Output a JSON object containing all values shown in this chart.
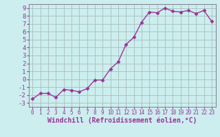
{
  "x": [
    0,
    1,
    2,
    3,
    4,
    5,
    6,
    7,
    8,
    9,
    10,
    11,
    12,
    13,
    14,
    15,
    16,
    17,
    18,
    19,
    20,
    21,
    22,
    23
  ],
  "y": [
    -2.5,
    -1.8,
    -1.8,
    -2.3,
    -1.3,
    -1.4,
    -1.6,
    -1.2,
    -0.1,
    -0.1,
    1.3,
    2.2,
    4.4,
    5.3,
    7.2,
    8.5,
    8.4,
    9.0,
    8.6,
    8.5,
    8.7,
    8.3,
    8.7,
    7.3
  ],
  "line_color": "#993399",
  "marker": "D",
  "marker_size": 2.5,
  "bg_color": "#cceeee",
  "grid_color": "#aabbbb",
  "tick_color": "#993399",
  "label_color": "#993399",
  "xlabel": "Windchill (Refroidissement éolien,°C)",
  "ylabel": "",
  "xlim": [
    -0.5,
    23.5
  ],
  "ylim": [
    -3.5,
    9.5
  ],
  "yticks": [
    -3,
    -2,
    -1,
    0,
    1,
    2,
    3,
    4,
    5,
    6,
    7,
    8,
    9
  ],
  "xticks": [
    0,
    1,
    2,
    3,
    4,
    5,
    6,
    7,
    8,
    9,
    10,
    11,
    12,
    13,
    14,
    15,
    16,
    17,
    18,
    19,
    20,
    21,
    22,
    23
  ],
  "font_size": 6.5,
  "xlabel_font_size": 7.0,
  "line_width": 1.0
}
